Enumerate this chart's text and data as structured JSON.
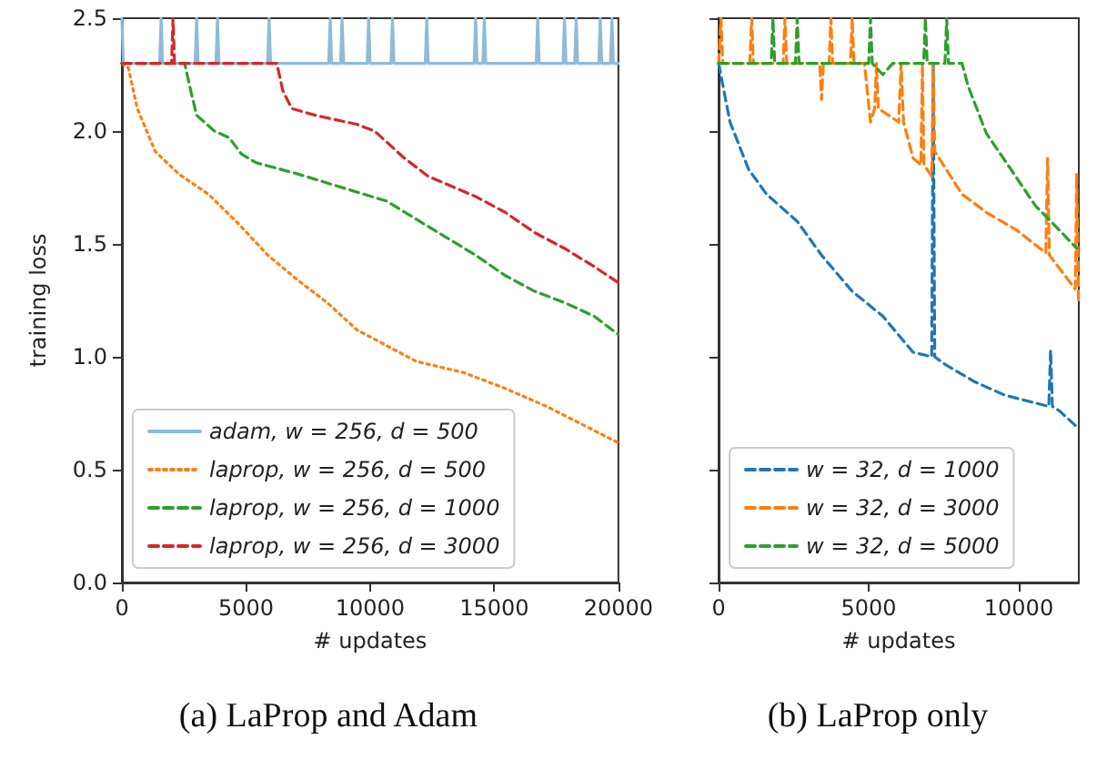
{
  "chart_data": [
    {
      "type": "line",
      "xlabel": "# updates",
      "ylabel": "training loss",
      "annotations": [
        "(a) LaProp and Adam"
      ],
      "xlim": [
        0,
        20000
      ],
      "xticks": [
        0,
        5000,
        10000,
        15000,
        20000
      ],
      "ylim": [
        0,
        2.5
      ],
      "yticks": [
        {
          "value": 0,
          "label": "0.0"
        },
        0.5,
        {
          "value": 1,
          "label": "1.0"
        },
        1.5,
        {
          "value": 2,
          "label": "2.0"
        },
        2.5
      ],
      "grid": false,
      "legend": "bottom left",
      "series": [
        {
          "name": "adam, w = 256, d = 500",
          "color": "#8fbbd9",
          "line_style": "solid",
          "x": [
            0,
            60,
            1520,
            1580,
            1640,
            2950,
            3010,
            3070,
            3790,
            3850,
            3910,
            5870,
            5930,
            5990,
            8330,
            8390,
            8450,
            8810,
            8870,
            8930,
            9880,
            9940,
            10000,
            10840,
            10900,
            10960,
            12220,
            12280,
            12340,
            14190,
            14250,
            14310,
            14540,
            14600,
            14660,
            16690,
            16750,
            16810,
            17770,
            17830,
            17890,
            18240,
            18300,
            18360,
            19210,
            19270,
            19330,
            19680,
            19740,
            19800,
            20000
          ],
          "values": [
            2.5,
            2.3,
            2.3,
            2.5,
            2.3,
            2.3,
            2.5,
            2.3,
            2.3,
            2.5,
            2.3,
            2.3,
            2.5,
            2.3,
            2.3,
            2.5,
            2.3,
            2.3,
            2.5,
            2.3,
            2.3,
            2.5,
            2.3,
            2.3,
            2.5,
            2.3,
            2.3,
            2.5,
            2.3,
            2.3,
            2.5,
            2.3,
            2.3,
            2.5,
            2.3,
            2.3,
            2.5,
            2.3,
            2.3,
            2.5,
            2.3,
            2.3,
            2.5,
            2.3,
            2.3,
            2.5,
            2.3,
            2.3,
            2.5,
            2.3,
            2.3
          ]
        },
        {
          "name": "laprop, w = 256, d = 500",
          "color": "#ff7f0e",
          "line_style": "dotted",
          "x": [
            0,
            260,
            620,
            1340,
            2290,
            3490,
            4690,
            5880,
            7080,
            8270,
            9460,
            10660,
            11850,
            13770,
            15440,
            17110,
            18550,
            19980
          ],
          "values": [
            2.3,
            2.28,
            2.1,
            1.91,
            1.81,
            1.72,
            1.59,
            1.45,
            1.34,
            1.24,
            1.12,
            1.05,
            0.98,
            0.93,
            0.86,
            0.78,
            0.7,
            0.62
          ]
        },
        {
          "name": "laprop, w = 256, d = 1000",
          "color": "#2ca02c",
          "line_style": "dashed",
          "x": [
            0,
            2530,
            2770,
            3010,
            3730,
            4330,
            4800,
            5400,
            7080,
            9460,
            10660,
            11850,
            13050,
            14250,
            15440,
            16630,
            17830,
            19020,
            19980
          ],
          "values": [
            2.3,
            2.3,
            2.18,
            2.07,
            2.0,
            1.97,
            1.9,
            1.86,
            1.81,
            1.73,
            1.69,
            1.61,
            1.53,
            1.45,
            1.36,
            1.29,
            1.24,
            1.18,
            1.1
          ]
        },
        {
          "name": "laprop, w = 256, d = 3000",
          "color": "#d62728",
          "line_style": "dashed",
          "x": [
            0,
            2000,
            2060,
            2120,
            6240,
            6480,
            6840,
            7790,
            9460,
            10180,
            11380,
            12330,
            14250,
            15440,
            16630,
            17830,
            19020,
            19980
          ],
          "values": [
            2.3,
            2.3,
            2.5,
            2.3,
            2.3,
            2.18,
            2.1,
            2.07,
            2.03,
            2.0,
            1.88,
            1.8,
            1.71,
            1.64,
            1.55,
            1.48,
            1.4,
            1.33
          ]
        }
      ]
    },
    {
      "type": "line",
      "xlabel": "# updates",
      "annotations": [
        "(b) LaProp only"
      ],
      "xlim": [
        0,
        12000
      ],
      "xticks": [
        0,
        5000,
        10000
      ],
      "ylim": [
        0,
        2.5
      ],
      "yticks": [
        0,
        0.5,
        1,
        1.5,
        2,
        2.5
      ],
      "tick_labels": "x",
      "grid": false,
      "legend": "bottom left",
      "series": [
        {
          "name": "w = 32, d = 1000",
          "color": "#1f77b4",
          "line_style": "dashed",
          "x": [
            0,
            380,
            1000,
            1600,
            2620,
            3430,
            4450,
            5470,
            6480,
            7100,
            7150,
            7200,
            7500,
            8520,
            9530,
            11000,
            11060,
            11120,
            11360,
            11930
          ],
          "values": [
            2.3,
            2.04,
            1.83,
            1.72,
            1.6,
            1.45,
            1.29,
            1.18,
            1.02,
            1.0,
            2.3,
            1.0,
            0.97,
            0.89,
            0.83,
            0.78,
            1.03,
            0.78,
            0.76,
            0.69
          ]
        },
        {
          "name": "w = 32, d = 3000",
          "color": "#ff7f0e",
          "line_style": "dashed",
          "x": [
            0,
            80,
            140,
            1040,
            1100,
            1160,
            2150,
            2210,
            2270,
            3370,
            3430,
            3490,
            3680,
            3740,
            3800,
            4390,
            4450,
            4510,
            4860,
            5060,
            5200,
            5260,
            5320,
            6000,
            6080,
            6160,
            6480,
            6740,
            6790,
            6840,
            7100,
            7150,
            7200,
            8110,
            8920,
            9940,
            10900,
            10960,
            11020,
            11880,
            11930,
            11990
          ],
          "values": [
            2.3,
            2.5,
            2.3,
            2.3,
            2.5,
            2.3,
            2.3,
            2.5,
            2.3,
            2.3,
            2.14,
            2.3,
            2.3,
            2.5,
            2.3,
            2.3,
            2.5,
            2.3,
            2.3,
            2.04,
            2.1,
            2.3,
            2.1,
            2.04,
            2.3,
            2.04,
            1.88,
            1.85,
            2.3,
            1.85,
            1.8,
            2.3,
            1.91,
            1.72,
            1.64,
            1.56,
            1.46,
            1.88,
            1.45,
            1.3,
            1.81,
            1.24
          ]
        },
        {
          "name": "w = 32, d = 5000",
          "color": "#2ca02c",
          "line_style": "dashed",
          "x": [
            0,
            1750,
            1810,
            1870,
            2560,
            2620,
            2680,
            5000,
            5060,
            5120,
            5470,
            5800,
            6830,
            6890,
            6950,
            7540,
            7600,
            7660,
            8110,
            8310,
            8920,
            9740,
            10550,
            11360,
            11930
          ],
          "values": [
            2.3,
            2.3,
            2.5,
            2.3,
            2.3,
            2.5,
            2.3,
            2.3,
            2.5,
            2.3,
            2.25,
            2.3,
            2.3,
            2.5,
            2.3,
            2.3,
            2.5,
            2.3,
            2.3,
            2.2,
            1.99,
            1.83,
            1.67,
            1.56,
            1.48
          ]
        }
      ]
    }
  ]
}
